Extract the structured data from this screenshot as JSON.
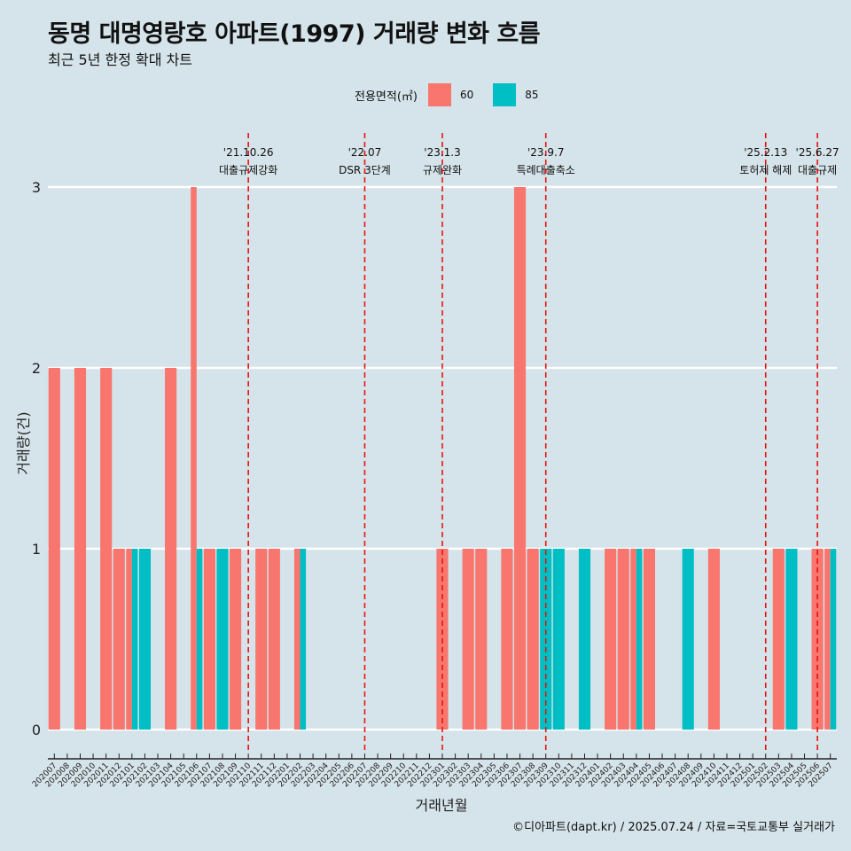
{
  "title": "동명 대명영랑호 아파트(1997) 거래량 변화 흐름",
  "subtitle": "최근 5년 한정 확대 차트",
  "caption": "©디아파트(dapt.kr) / 2025.07.24 / 자료=국토교통부 실거래가",
  "colors": {
    "background": "#d5e3ea",
    "s60": "#f8766d",
    "s85": "#00bfc4",
    "event_line": "#e8140c"
  },
  "chart_data": {
    "type": "bar",
    "xlabel": "거래년월",
    "ylabel": "거래량(건)",
    "legend_title": "전용면적(㎡)",
    "legend_position": "top",
    "ylim": [
      0,
      3
    ],
    "yticks": [
      0,
      1,
      2,
      3
    ],
    "grid": true,
    "categories": [
      "202007",
      "202008",
      "202009",
      "202010",
      "202011",
      "202012",
      "202101",
      "202102",
      "202103",
      "202104",
      "202105",
      "202106",
      "202107",
      "202108",
      "202109",
      "202110",
      "202111",
      "202112",
      "202201",
      "202202",
      "202203",
      "202204",
      "202205",
      "202206",
      "202207",
      "202208",
      "202209",
      "202210",
      "202211",
      "202212",
      "202301",
      "202302",
      "202303",
      "202304",
      "202305",
      "202306",
      "202307",
      "202308",
      "202309",
      "202310",
      "202311",
      "202312",
      "202401",
      "202402",
      "202403",
      "202404",
      "202405",
      "202406",
      "202407",
      "202408",
      "202409",
      "202410",
      "202411",
      "202412",
      "202501",
      "202502",
      "202503",
      "202504",
      "202505",
      "202506",
      "202507"
    ],
    "series": [
      {
        "name": "60",
        "values": [
          2,
          0,
          2,
          0,
          2,
          1,
          1,
          0,
          0,
          2,
          0,
          3,
          1,
          0,
          1,
          0,
          1,
          1,
          0,
          1,
          0,
          0,
          0,
          0,
          0,
          0,
          0,
          0,
          0,
          0,
          1,
          0,
          1,
          1,
          0,
          1,
          3,
          1,
          0,
          0,
          0,
          0,
          0,
          1,
          1,
          1,
          1,
          0,
          0,
          0,
          0,
          1,
          0,
          0,
          0,
          0,
          1,
          0,
          0,
          1,
          1
        ]
      },
      {
        "name": "85",
        "values": [
          0,
          0,
          0,
          0,
          0,
          0,
          1,
          1,
          0,
          0,
          0,
          1,
          0,
          1,
          0,
          0,
          0,
          0,
          0,
          1,
          0,
          0,
          0,
          0,
          0,
          0,
          0,
          0,
          0,
          0,
          0,
          0,
          0,
          0,
          0,
          0,
          0,
          0,
          1,
          1,
          0,
          1,
          0,
          0,
          0,
          1,
          0,
          0,
          0,
          1,
          0,
          0,
          0,
          0,
          0,
          0,
          0,
          1,
          0,
          0,
          1
        ]
      }
    ],
    "events": [
      {
        "date": "'21.10.26",
        "label": "대출규제강화",
        "after": "202110"
      },
      {
        "date": "'22.07",
        "label": "DSR 3단계",
        "after": "202207"
      },
      {
        "date": "'23.1.3",
        "label": "규제완화",
        "after": "202301"
      },
      {
        "date": "'23.9.7",
        "label": "특례대출축소",
        "after": "202309"
      },
      {
        "date": "'25.2.13",
        "label": "토허제 해제",
        "after": "202502"
      },
      {
        "date": "'25.6.27",
        "label": "대출규제",
        "after": "202506"
      }
    ]
  }
}
